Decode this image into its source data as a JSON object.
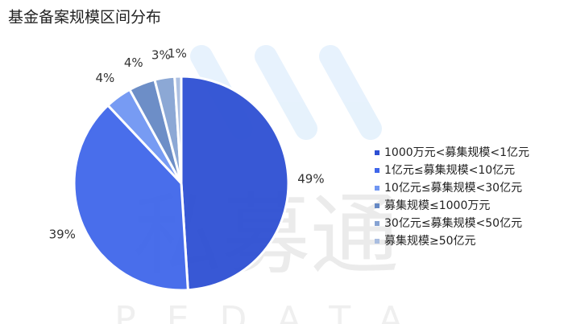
{
  "chart_data": {
    "type": "pie",
    "title": "基金备案规模区间分布",
    "watermark": "私募通",
    "watermark_subtitle": "PEDATA",
    "categories": [
      "1000万元<募集规模<1亿元",
      "1亿元≤募集规模<10亿元",
      "10亿元≤募集规模<30亿元",
      "募集规模≤1000万元",
      "30亿元≤募集规模<50亿元",
      "募集规模≥50亿元"
    ],
    "values": [
      49,
      39,
      4,
      4,
      3,
      1
    ],
    "value_labels": [
      "49%",
      "39%",
      "4%",
      "4%",
      "3%",
      "1%"
    ],
    "colors": [
      "#2d4fd3",
      "#3f66ea",
      "#7096f2",
      "#6588c4",
      "#86a3d3",
      "#a9bde0"
    ]
  }
}
